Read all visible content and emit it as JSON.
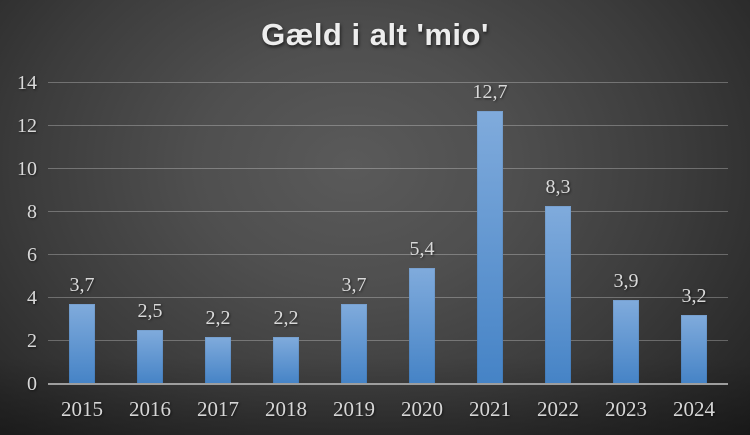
{
  "chart_data": {
    "type": "bar",
    "title": "Gæld i alt 'mio'",
    "categories": [
      "2015",
      "2016",
      "2017",
      "2018",
      "2019",
      "2020",
      "2021",
      "2022",
      "2023",
      "2024"
    ],
    "values": [
      3.7,
      2.5,
      2.2,
      2.2,
      3.7,
      5.4,
      12.7,
      8.3,
      3.9,
      3.2
    ],
    "value_labels": [
      "3,7",
      "2,5",
      "2,2",
      "2,2",
      "3,7",
      "5,4",
      "12,7",
      "8,3",
      "3,9",
      "3,2"
    ],
    "yticks": [
      0,
      2,
      4,
      6,
      8,
      10,
      12,
      14
    ],
    "ylim": [
      0,
      14
    ],
    "xlabel": "",
    "ylabel": "",
    "grid": true,
    "legend_position": "none",
    "colors": {
      "bar_top": "#80abdc",
      "bar_bottom": "#4583c6",
      "gridline": "rgba(255,255,255,0.27)",
      "axis_line": "#9e9e9e",
      "label_text": "#d9d9d9",
      "title_text": "#ededed",
      "background_center": "#5a5a5a",
      "background_edge": "#1e1e1e"
    }
  }
}
